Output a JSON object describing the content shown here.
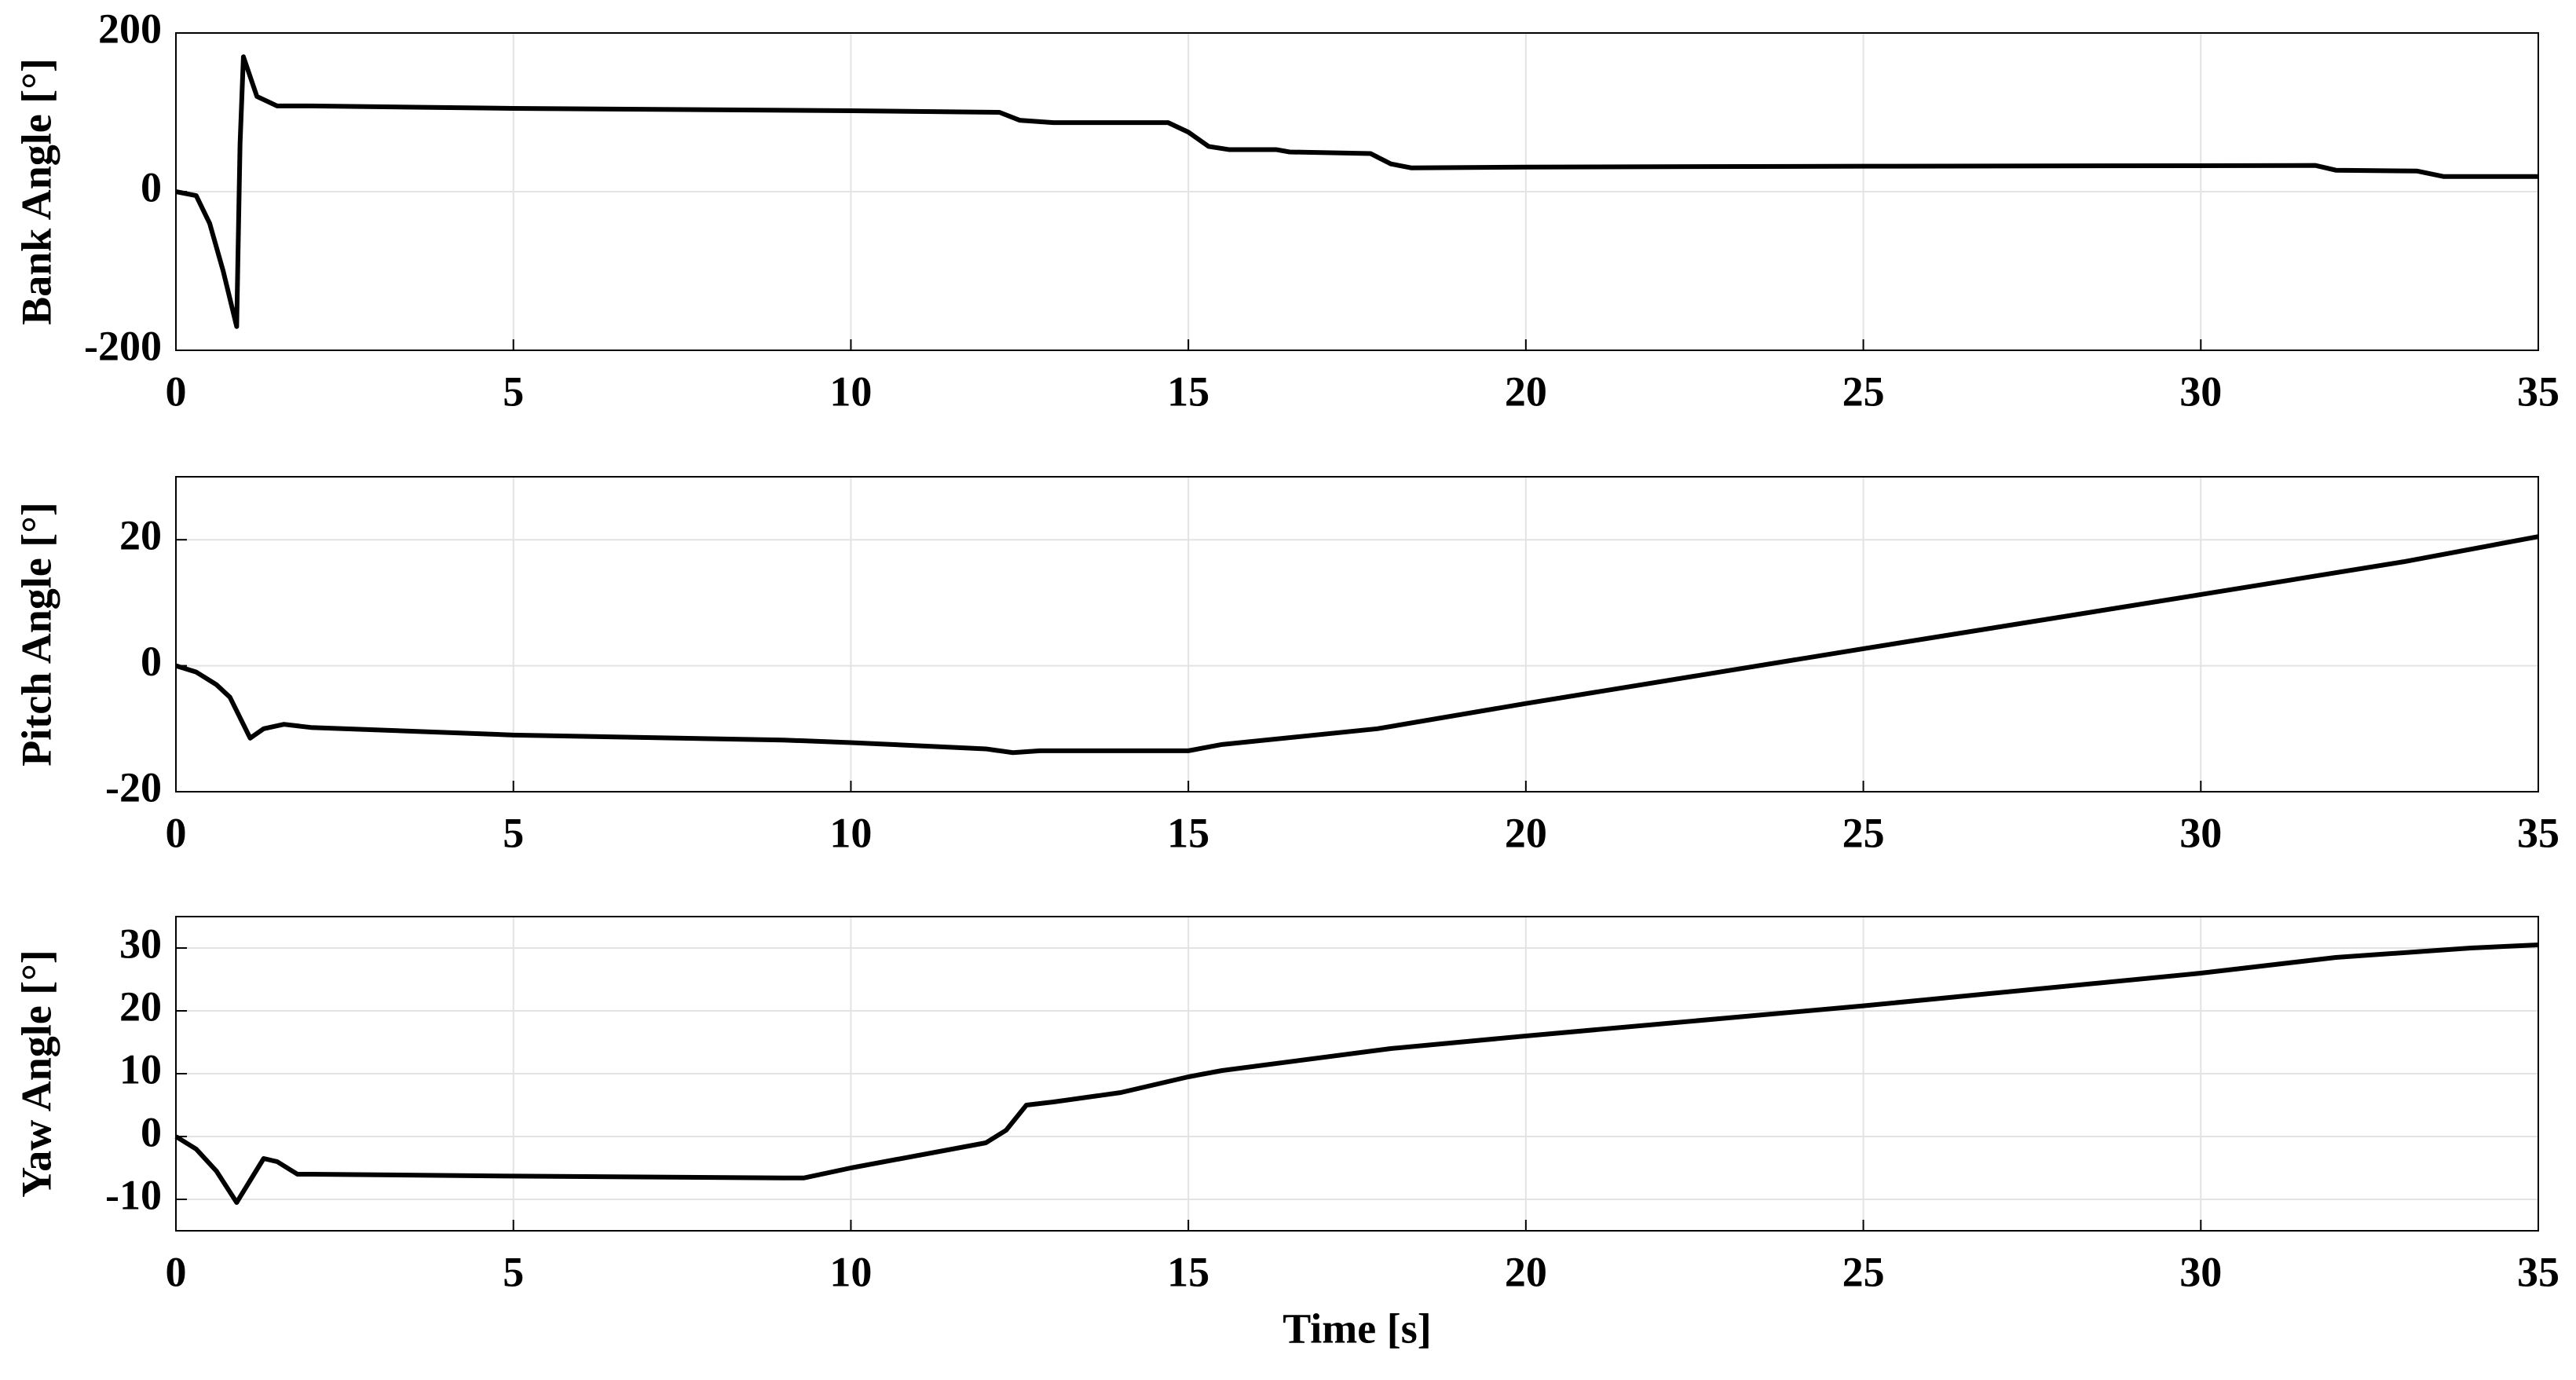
{
  "chart_data": [
    {
      "type": "line",
      "ylabel": "Bank Angle [°]",
      "x": [
        0,
        0.3,
        0.5,
        0.7,
        0.9,
        0.95,
        1.0,
        1.2,
        1.5,
        2,
        5,
        10,
        12.2,
        12.5,
        13,
        14.7,
        15,
        15.3,
        15.6,
        16.3,
        16.5,
        17.7,
        18,
        18.3,
        20,
        25,
        31.7,
        32,
        33.2,
        33.6,
        35
      ],
      "series": [
        {
          "color": "#000000",
          "values": [
            0,
            -5,
            -40,
            -100,
            -170,
            60,
            170,
            120,
            108,
            108,
            105,
            102,
            100,
            90,
            87,
            87,
            75,
            57,
            53,
            53,
            50,
            48,
            35,
            30,
            31,
            32,
            33,
            27,
            26,
            19,
            19
          ]
        }
      ],
      "xlim": [
        0,
        35
      ],
      "xticks": [
        0,
        5,
        10,
        15,
        20,
        25,
        30,
        35
      ],
      "ylim": [
        -200,
        200
      ],
      "yticks": [
        -200,
        0,
        200
      ],
      "grid": true
    },
    {
      "type": "line",
      "ylabel": "Pitch Angle [°]",
      "x": [
        0,
        0.3,
        0.6,
        0.8,
        1.1,
        1.3,
        1.6,
        2,
        5,
        9,
        10,
        12,
        12.4,
        12.8,
        15,
        15.5,
        17.8,
        20,
        25,
        30,
        33,
        35
      ],
      "series": [
        {
          "color": "#000000",
          "values": [
            0,
            -1,
            -3,
            -5,
            -11.5,
            -10,
            -9.3,
            -9.8,
            -11,
            -11.8,
            -12.2,
            -13.2,
            -13.8,
            -13.5,
            -13.5,
            -12.5,
            -10,
            -6,
            2.7,
            11.3,
            16.5,
            20.5
          ]
        }
      ],
      "xlim": [
        0,
        35
      ],
      "xticks": [
        0,
        5,
        10,
        15,
        20,
        25,
        30,
        35
      ],
      "ylim": [
        -20,
        30
      ],
      "yticks": [
        -20,
        0,
        20
      ],
      "grid": true
    },
    {
      "type": "line",
      "ylabel": "Yaw Angle [°]",
      "xlabel": "Time [s]",
      "x": [
        0,
        0.3,
        0.6,
        0.9,
        1.1,
        1.3,
        1.5,
        1.8,
        2,
        5,
        9,
        9.3,
        10,
        12,
        12.3,
        12.6,
        13,
        14,
        15,
        15.5,
        18,
        20,
        25,
        30,
        32,
        34,
        35
      ],
      "series": [
        {
          "color": "#000000",
          "values": [
            0,
            -2,
            -5.5,
            -10.5,
            -7,
            -3.5,
            -4,
            -6,
            -6,
            -6.3,
            -6.6,
            -6.6,
            -5,
            -1,
            1,
            5,
            5.5,
            7,
            9.5,
            10.5,
            14,
            16,
            20.8,
            26,
            28.5,
            30,
            30.5
          ]
        }
      ],
      "xlim": [
        0,
        35
      ],
      "xticks": [
        0,
        5,
        10,
        15,
        20,
        25,
        30,
        35
      ],
      "ylim": [
        -15,
        35
      ],
      "yticks": [
        -10,
        0,
        10,
        20,
        30
      ],
      "grid": true
    }
  ]
}
